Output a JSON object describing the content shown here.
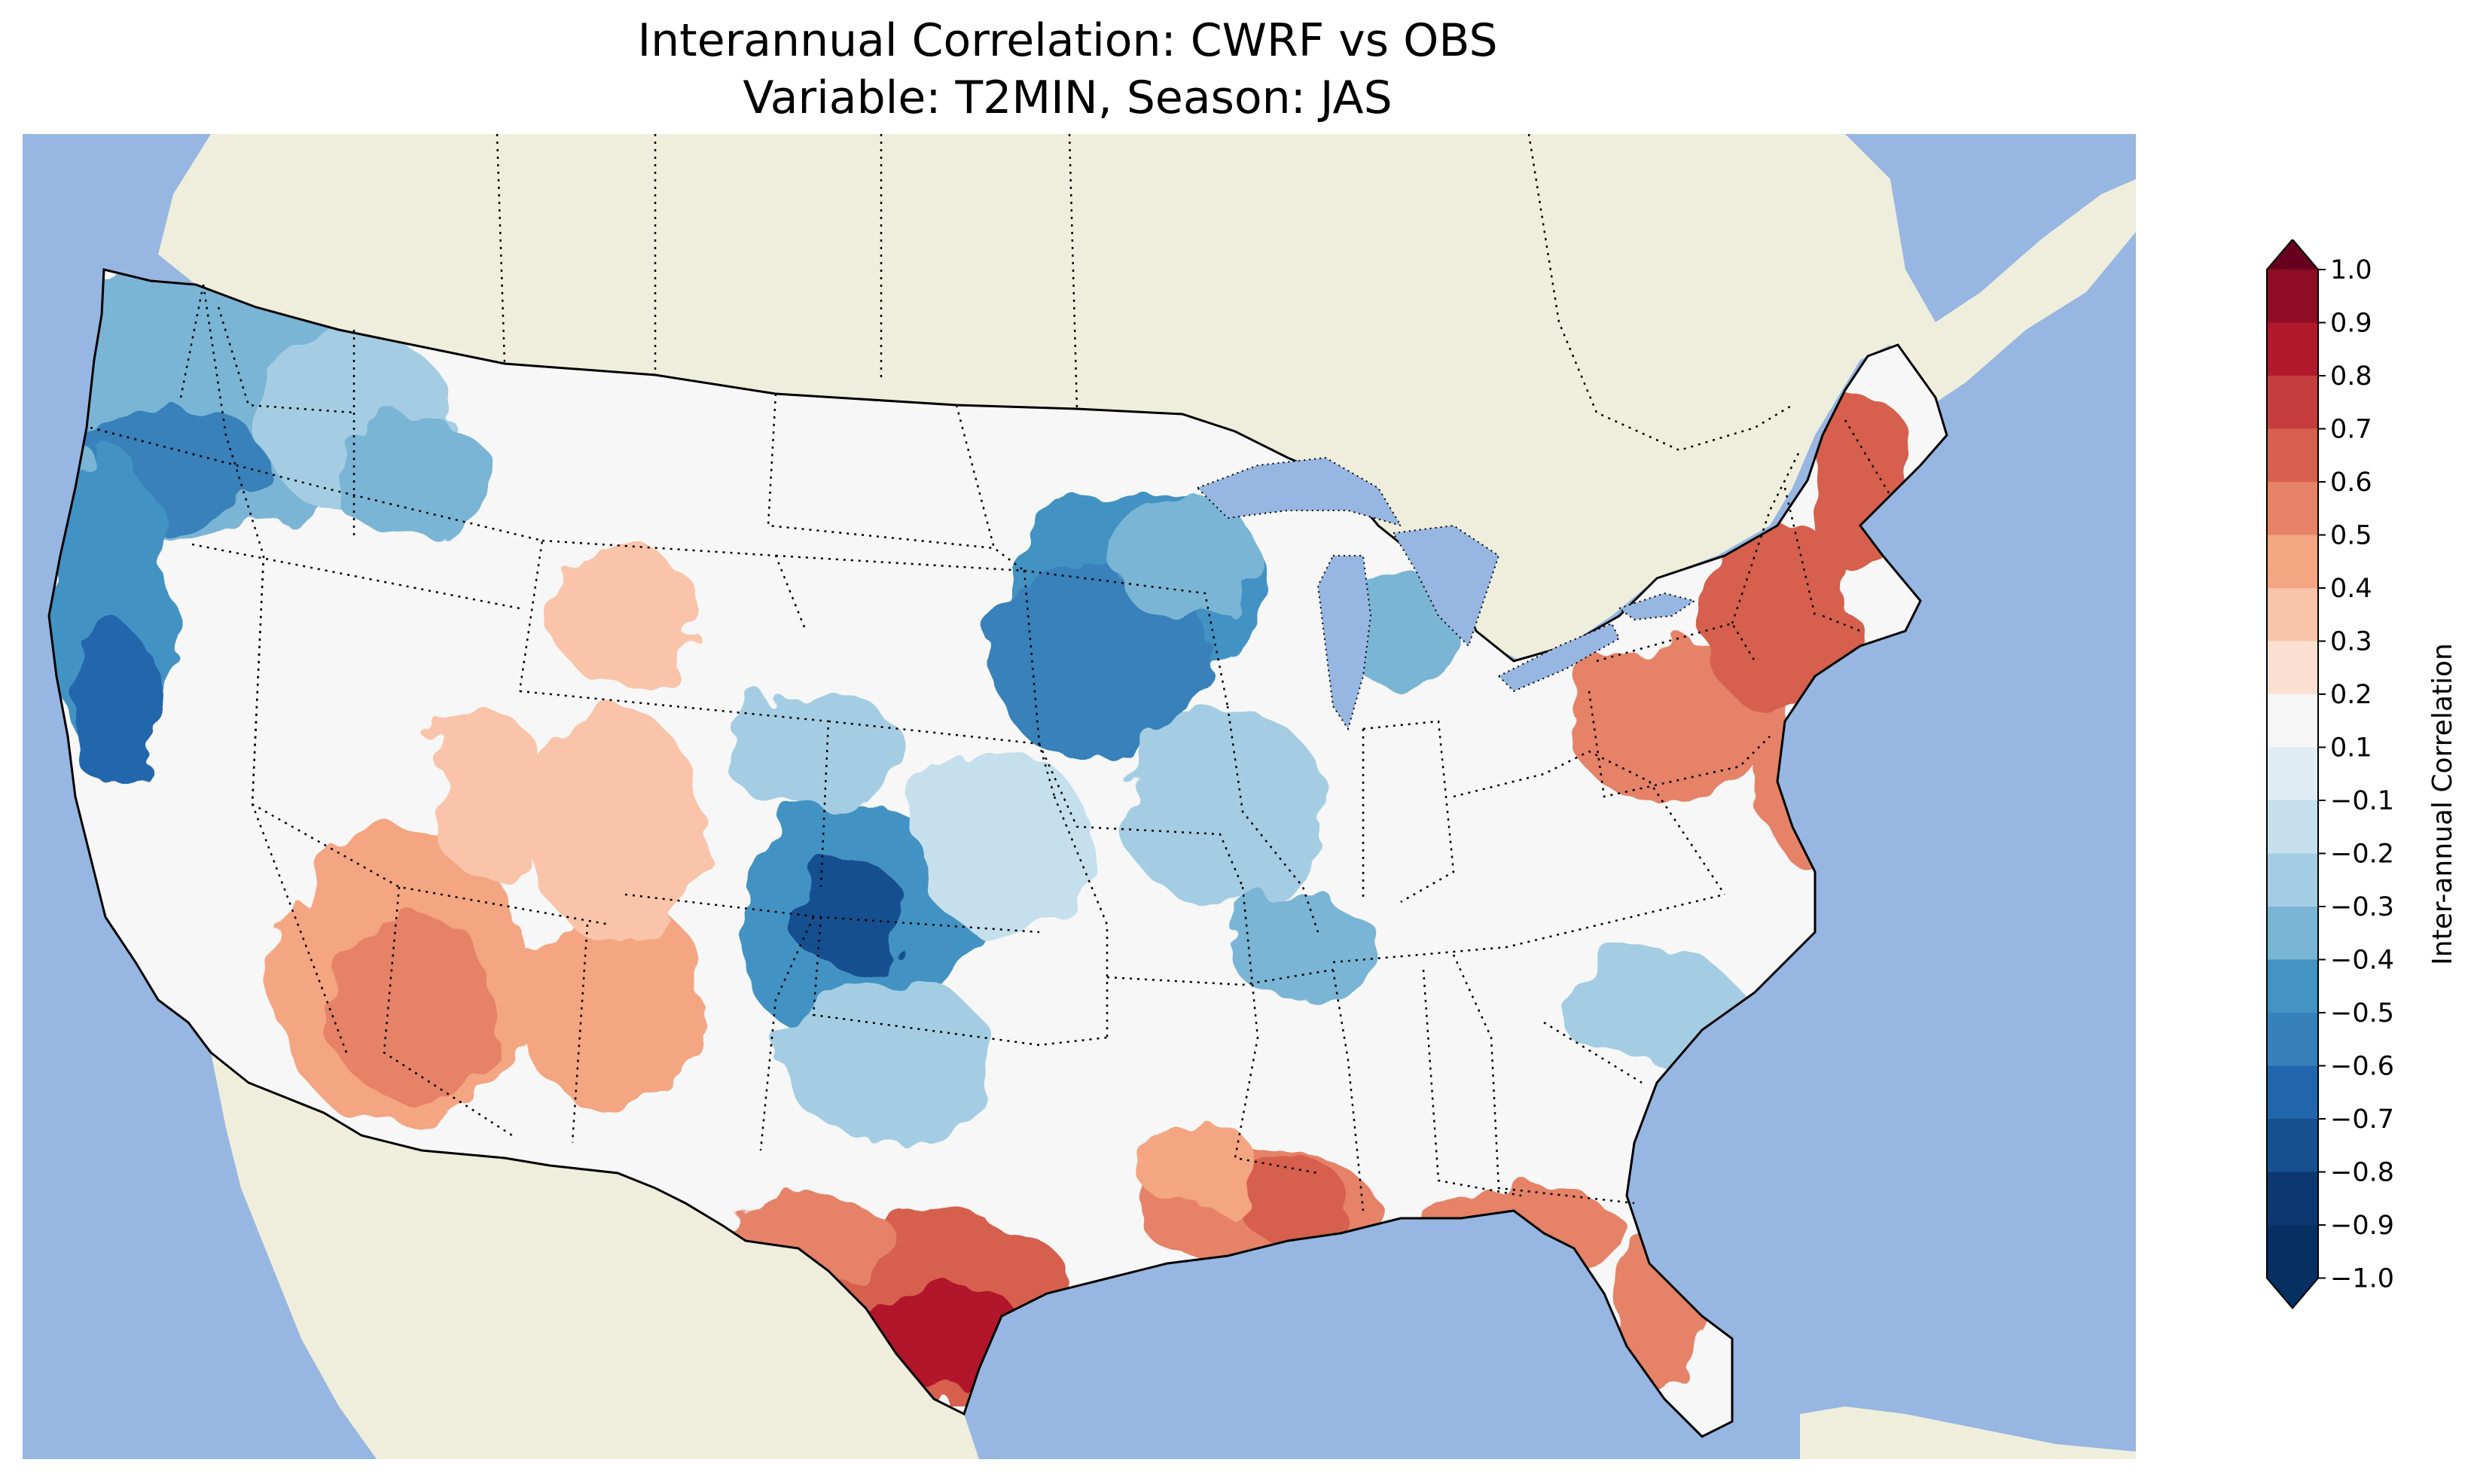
{
  "title": "Interannual Correlation: CWRF vs OBS",
  "subtitle": "Variable: T2MIN, Season: JAS",
  "colorbar": {
    "label": "Inter-annual Correlation",
    "ticks": [
      "1.0",
      "0.9",
      "0.8",
      "0.7",
      "0.6",
      "0.5",
      "0.4",
      "0.3",
      "0.2",
      "0.1",
      "−0.1",
      "−0.2",
      "−0.3",
      "−0.4",
      "−0.5",
      "−0.6",
      "−0.7",
      "−0.8",
      "−0.9",
      "−1.0"
    ],
    "colors": [
      "#67001f",
      "#8e0d25",
      "#b2182b",
      "#c53e3d",
      "#d6604d",
      "#e58267",
      "#f4a582",
      "#f9c4a9",
      "#fbe0d1",
      "#f7f7f7",
      "#dfecf4",
      "#c5dfec",
      "#a4cde3",
      "#7ab5d5",
      "#4393c3",
      "#3781ba",
      "#2166ac",
      "#174f8f",
      "#0d3771",
      "#053061"
    ],
    "extend": "both"
  },
  "map": {
    "region": "Contiguous United States",
    "ocean_color": "#97b6e1",
    "land_color": "#efeedc",
    "colormap": "RdBu_r",
    "range": [
      -1.0,
      1.0
    ],
    "features": [
      "coastlines",
      "state borders (dotted)",
      "country borders",
      "lakes"
    ]
  }
}
